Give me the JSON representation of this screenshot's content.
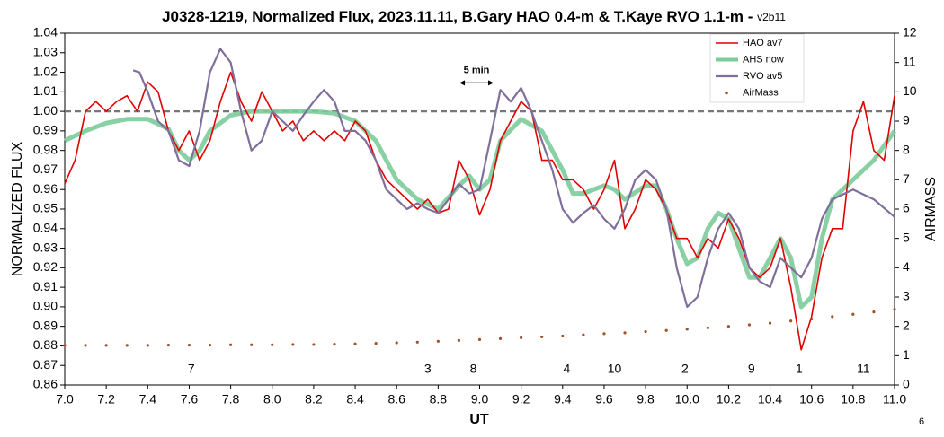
{
  "chart_data": {
    "type": "line",
    "title": "J0328-1219, Normalized Flux, 2023.11.11, B.Gary HAO 0.4-m & T.Kaye RVO 1.1-m - ",
    "subtitle": "v2b11",
    "x_label": "UT",
    "y_label": "NORMALIZED FLUX",
    "y2_label": "AIRMASS",
    "page_number": "6",
    "xlim": [
      7,
      11
    ],
    "xticks": [
      {
        "value": 7,
        "label": "7.0"
      },
      7.2,
      7.4,
      7.6,
      7.8,
      {
        "value": 8,
        "label": "8.0"
      },
      8.2,
      8.4,
      8.6,
      8.8,
      {
        "value": 9,
        "label": "9.0"
      },
      9.2,
      9.4,
      9.6,
      9.8,
      {
        "value": 10,
        "label": "10.0"
      },
      10.2,
      10.4,
      10.6,
      10.8,
      {
        "value": 11,
        "label": "11.0"
      }
    ],
    "ylim": [
      0.86,
      1.04
    ],
    "yticks": [
      0.86,
      0.87,
      0.88,
      0.89,
      {
        "value": 0.9,
        "label": "0.90"
      },
      0.91,
      0.92,
      0.93,
      0.94,
      0.95,
      0.96,
      0.97,
      0.98,
      0.99,
      {
        "value": 1,
        "label": "1.00"
      },
      1.01,
      1.02,
      1.03,
      1.04
    ],
    "y2lim": [
      0,
      12
    ],
    "y2ticks": [
      0,
      1,
      2,
      3,
      4,
      5,
      6,
      7,
      8,
      9,
      10,
      11,
      12
    ],
    "reference_value": 1,
    "legend": "top-right",
    "series": [
      {
        "name": "HAO av7",
        "color": "#e00000",
        "width": 1.6,
        "x": [
          7,
          7.05,
          7.1,
          7.15,
          7.2,
          7.25,
          7.3,
          7.35,
          7.4,
          7.45,
          7.5,
          7.55,
          7.6,
          7.65,
          7.7,
          7.75,
          7.8,
          7.85,
          7.9,
          7.95,
          8,
          8.05,
          8.1,
          8.15,
          8.2,
          8.25,
          8.3,
          8.35,
          8.4,
          8.45,
          8.5,
          8.55,
          8.6,
          8.65,
          8.7,
          8.75,
          8.8,
          8.85,
          8.9,
          8.95,
          9,
          9.05,
          9.1,
          9.15,
          9.2,
          9.25,
          9.3,
          9.35,
          9.4,
          9.45,
          9.5,
          9.55,
          9.6,
          9.65,
          9.7,
          9.75,
          9.8,
          9.85,
          9.9,
          9.95,
          10,
          10.05,
          10.1,
          10.15,
          10.2,
          10.25,
          10.3,
          10.35,
          10.4,
          10.45,
          10.5,
          10.55,
          10.6,
          10.65,
          10.7,
          10.75,
          10.8,
          10.85,
          10.9,
          10.95,
          11
        ],
        "values": [
          0.963,
          0.975,
          1.0,
          1.005,
          1.0,
          1.005,
          1.008,
          1.0,
          1.015,
          1.01,
          0.99,
          0.98,
          0.99,
          0.975,
          0.985,
          1.005,
          1.02,
          1.005,
          0.995,
          1.01,
          1.0,
          0.99,
          0.995,
          0.985,
          0.99,
          0.985,
          0.99,
          0.985,
          0.995,
          0.99,
          0.975,
          0.965,
          0.96,
          0.955,
          0.95,
          0.955,
          0.948,
          0.95,
          0.975,
          0.965,
          0.947,
          0.96,
          0.985,
          0.995,
          1.005,
          1.0,
          0.975,
          0.975,
          0.965,
          0.965,
          0.96,
          0.95,
          0.96,
          0.975,
          0.94,
          0.95,
          0.965,
          0.96,
          0.95,
          0.935,
          0.935,
          0.925,
          0.935,
          0.93,
          0.945,
          0.935,
          0.92,
          0.915,
          0.92,
          0.935,
          0.91,
          0.878,
          0.895,
          0.925,
          0.94,
          0.94,
          0.99,
          1.005,
          0.98,
          0.975,
          1.008
        ]
      },
      {
        "name": "AHS now",
        "color": "#7ccc9a",
        "width": 5,
        "x": [
          7,
          7.1,
          7.2,
          7.3,
          7.4,
          7.5,
          7.55,
          7.6,
          7.65,
          7.7,
          7.8,
          7.9,
          8,
          8.1,
          8.2,
          8.3,
          8.4,
          8.5,
          8.6,
          8.7,
          8.8,
          8.9,
          8.95,
          9,
          9.05,
          9.1,
          9.2,
          9.3,
          9.4,
          9.45,
          9.5,
          9.6,
          9.65,
          9.7,
          9.8,
          9.85,
          9.9,
          9.95,
          10,
          10.05,
          10.1,
          10.15,
          10.2,
          10.25,
          10.3,
          10.35,
          10.4,
          10.45,
          10.5,
          10.55,
          10.6,
          10.65,
          10.7,
          10.8,
          10.9,
          11
        ],
        "values": [
          0.985,
          0.99,
          0.994,
          0.996,
          0.996,
          0.991,
          0.98,
          0.975,
          0.98,
          0.99,
          0.998,
          1.0,
          1.0,
          1.0,
          1.0,
          0.999,
          0.995,
          0.985,
          0.965,
          0.955,
          0.95,
          0.962,
          0.967,
          0.96,
          0.965,
          0.985,
          0.996,
          0.99,
          0.97,
          0.958,
          0.958,
          0.962,
          0.96,
          0.955,
          0.962,
          0.962,
          0.95,
          0.935,
          0.922,
          0.925,
          0.94,
          0.948,
          0.945,
          0.93,
          0.915,
          0.915,
          0.925,
          0.935,
          0.925,
          0.9,
          0.905,
          0.935,
          0.955,
          0.965,
          0.975,
          0.99
        ]
      },
      {
        "name": "RVO av5",
        "color": "#7f6f9a",
        "width": 2.2,
        "x": [
          7.33,
          7.36,
          7.4,
          7.45,
          7.5,
          7.55,
          7.6,
          7.65,
          7.7,
          7.75,
          7.8,
          7.85,
          7.9,
          7.95,
          8,
          8.05,
          8.1,
          8.15,
          8.2,
          8.25,
          8.3,
          8.35,
          8.4,
          8.45,
          8.5,
          8.55,
          8.6,
          8.65,
          8.7,
          8.75,
          8.8,
          8.85,
          8.9,
          8.95,
          9,
          9.05,
          9.1,
          9.15,
          9.2,
          9.25,
          9.3,
          9.35,
          9.4,
          9.45,
          9.5,
          9.55,
          9.6,
          9.65,
          9.7,
          9.75,
          9.8,
          9.85,
          9.9,
          9.95,
          10,
          10.05,
          10.1,
          10.15,
          10.2,
          10.25,
          10.3,
          10.35,
          10.4,
          10.45,
          10.5,
          10.55,
          10.6,
          10.65,
          10.7,
          10.8,
          10.9,
          11
        ],
        "values": [
          1.021,
          1.02,
          1.01,
          0.995,
          0.99,
          0.975,
          0.972,
          0.99,
          1.02,
          1.032,
          1.025,
          1.0,
          0.98,
          0.985,
          1.0,
          0.995,
          0.99,
          0.998,
          1.005,
          1.011,
          1.005,
          0.99,
          0.99,
          0.985,
          0.975,
          0.96,
          0.955,
          0.95,
          0.953,
          0.95,
          0.948,
          0.955,
          0.963,
          0.958,
          0.96,
          0.985,
          1.011,
          1.005,
          1.012,
          1.0,
          0.985,
          0.97,
          0.95,
          0.943,
          0.948,
          0.952,
          0.945,
          0.94,
          0.95,
          0.965,
          0.97,
          0.965,
          0.95,
          0.92,
          0.9,
          0.905,
          0.925,
          0.94,
          0.948,
          0.94,
          0.92,
          0.913,
          0.91,
          0.925,
          0.92,
          0.915,
          0.925,
          0.945,
          0.955,
          0.96,
          0.955,
          0.946
        ]
      },
      {
        "name": "AirMass",
        "color": "#a0522d",
        "axis": "y2",
        "marker": "dot",
        "x": [
          7,
          7.1,
          7.2,
          7.3,
          7.4,
          7.5,
          7.6,
          7.7,
          7.8,
          7.9,
          8,
          8.1,
          8.2,
          8.3,
          8.4,
          8.5,
          8.6,
          8.7,
          8.8,
          8.9,
          9,
          9.1,
          9.2,
          9.3,
          9.4,
          9.5,
          9.6,
          9.7,
          9.8,
          9.9,
          10,
          10.1,
          10.2,
          10.3,
          10.4,
          10.5,
          10.6,
          10.7,
          10.8,
          10.9,
          11
        ],
        "values": [
          1.35,
          1.35,
          1.35,
          1.35,
          1.35,
          1.36,
          1.36,
          1.36,
          1.37,
          1.37,
          1.37,
          1.38,
          1.38,
          1.39,
          1.4,
          1.42,
          1.44,
          1.46,
          1.49,
          1.52,
          1.55,
          1.58,
          1.61,
          1.64,
          1.67,
          1.71,
          1.75,
          1.78,
          1.82,
          1.86,
          1.9,
          1.95,
          2.0,
          2.05,
          2.11,
          2.18,
          2.25,
          2.33,
          2.41,
          2.49,
          2.58
        ]
      }
    ],
    "annotations": [
      {
        "text": "5 min",
        "x": 8.985,
        "y": 1.021
      },
      {
        "text": "7",
        "x": 7.61,
        "y": 0.868
      },
      {
        "text": "3",
        "x": 8.75,
        "y": 0.868
      },
      {
        "text": "8",
        "x": 8.97,
        "y": 0.868
      },
      {
        "text": "4",
        "x": 9.42,
        "y": 0.868
      },
      {
        "text": "10",
        "x": 9.65,
        "y": 0.868
      },
      {
        "text": "2",
        "x": 9.99,
        "y": 0.868
      },
      {
        "text": "9",
        "x": 10.31,
        "y": 0.868
      },
      {
        "text": "1",
        "x": 10.54,
        "y": 0.868
      },
      {
        "text": "11",
        "x": 10.85,
        "y": 0.868
      }
    ]
  }
}
